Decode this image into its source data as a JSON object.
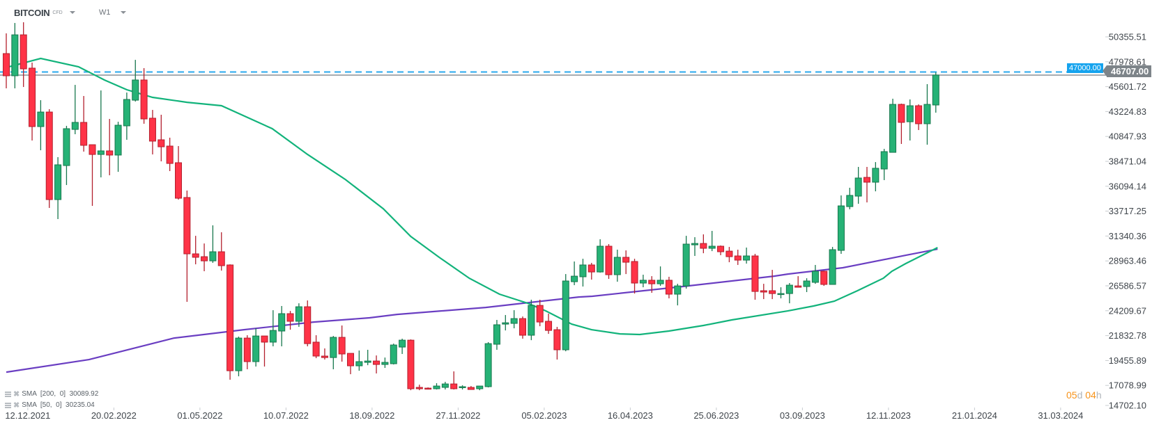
{
  "header": {
    "symbol": "BITCOIN",
    "symbol_type": "CFD",
    "timeframe": "W1"
  },
  "price_axis": {
    "ticks": [
      "50355.51",
      "47978.61",
      "45601.72",
      "43224.83",
      "40847.93",
      "38471.04",
      "36094.14",
      "33717.25",
      "31340.36",
      "28963.46",
      "26586.57",
      "24209.67",
      "21832.78",
      "19455.89",
      "17078.99",
      "14702.10"
    ]
  },
  "date_axis": {
    "labels": [
      "12.12.2021",
      "20.02.2022",
      "01.05.2022",
      "10.07.2022",
      "18.09.2022",
      "27.11.2022",
      "05.02.2023",
      "16.04.2023",
      "25.06.2023",
      "03.09.2023",
      "12.11.2023",
      "21.01.2024",
      "31.03.2024"
    ]
  },
  "price_tags": {
    "horizontal_line": "47000.00",
    "last_price": "46707.00"
  },
  "legend": [
    {
      "label": "SMA  [200,  0]  30089.92"
    },
    {
      "label": "SMA  [50,  0]  30235.04"
    }
  ],
  "countdown": {
    "days": "05",
    "d": "d",
    "hours": "04",
    "h": "h"
  },
  "colors": {
    "up": "#26b276",
    "up_border": "#17774d",
    "down": "#ff3347",
    "down_border": "#b31f2d",
    "sma50": "#12b37b",
    "sma200": "#6a3ec2",
    "hline": "#29a9ee",
    "last": "#7d8489"
  },
  "chart_data": {
    "type": "candlestick",
    "timeframe": "weekly",
    "ylim": [
      14702.1,
      50355.51
    ],
    "horizontal_line": 47000,
    "last_price": 46707,
    "candles_ohlc": [
      [
        48760,
        50690,
        45440,
        46640
      ],
      [
        46640,
        51680,
        45440,
        50550
      ],
      [
        50550,
        51750,
        45570,
        47300
      ],
      [
        47370,
        47900,
        40460,
        41790
      ],
      [
        41790,
        44310,
        39530,
        43180
      ],
      [
        43180,
        43450,
        34020,
        34820
      ],
      [
        34820,
        38870,
        32960,
        38140
      ],
      [
        38070,
        41860,
        36210,
        41590
      ],
      [
        41520,
        45770,
        41060,
        42190
      ],
      [
        42190,
        44710,
        39400,
        40000
      ],
      [
        40060,
        40060,
        34220,
        39130
      ],
      [
        39130,
        45240,
        36940,
        39470
      ],
      [
        39470,
        42520,
        37140,
        39070
      ],
      [
        39070,
        42250,
        37470,
        41920
      ],
      [
        41860,
        45040,
        40530,
        44380
      ],
      [
        44310,
        48160,
        44180,
        46240
      ],
      [
        46240,
        47370,
        42060,
        42520
      ],
      [
        42590,
        43380,
        39130,
        40400
      ],
      [
        40530,
        42920,
        38470,
        39860
      ],
      [
        39930,
        40730,
        37540,
        38270
      ],
      [
        38340,
        39930,
        34820,
        34950
      ],
      [
        35020,
        35680,
        25060,
        29640
      ],
      [
        29640,
        31360,
        28640,
        29310
      ],
      [
        29370,
        30630,
        27980,
        28970
      ],
      [
        28970,
        32360,
        28780,
        29840
      ],
      [
        29840,
        31700,
        28040,
        28510
      ],
      [
        28580,
        28640,
        17620,
        18480
      ],
      [
        18480,
        21740,
        17950,
        21600
      ],
      [
        21600,
        21870,
        18620,
        19350
      ],
      [
        19350,
        22530,
        18880,
        21800
      ],
      [
        21800,
        21800,
        18880,
        21210
      ],
      [
        21210,
        24260,
        20810,
        22330
      ],
      [
        22270,
        24660,
        20810,
        23930
      ],
      [
        23930,
        24190,
        22400,
        23200
      ],
      [
        23200,
        24920,
        22670,
        24590
      ],
      [
        24590,
        25190,
        20810,
        21070
      ],
      [
        21210,
        21870,
        19680,
        19880
      ],
      [
        19880,
        20610,
        19550,
        19740
      ],
      [
        19740,
        21800,
        18620,
        21670
      ],
      [
        21670,
        22800,
        19350,
        20080
      ],
      [
        20140,
        20140,
        18150,
        18950
      ],
      [
        18950,
        20410,
        18480,
        19350
      ],
      [
        19280,
        20480,
        19010,
        19410
      ],
      [
        19410,
        19940,
        18220,
        19080
      ],
      [
        19080,
        19740,
        18750,
        19280
      ],
      [
        19150,
        21070,
        19080,
        20940
      ],
      [
        20740,
        21540,
        20080,
        21400
      ],
      [
        21400,
        21470,
        16620,
        16760
      ],
      [
        16890,
        17150,
        16620,
        16760
      ],
      [
        16820,
        16890,
        16690,
        16760
      ],
      [
        16760,
        17290,
        16690,
        17020
      ],
      [
        16890,
        17420,
        16690,
        17220
      ],
      [
        17220,
        18420,
        16690,
        16760
      ],
      [
        16890,
        17090,
        16690,
        16960
      ],
      [
        16890,
        17020,
        16690,
        16690
      ],
      [
        16760,
        16820,
        16620,
        17020
      ],
      [
        16960,
        21210,
        16890,
        21070
      ],
      [
        21010,
        23330,
        20480,
        22870
      ],
      [
        22930,
        23800,
        22330,
        23060
      ],
      [
        23000,
        24260,
        22530,
        23460
      ],
      [
        23460,
        23660,
        21540,
        21870
      ],
      [
        21870,
        25260,
        21400,
        24720
      ],
      [
        24720,
        25260,
        22730,
        23130
      ],
      [
        23200,
        23930,
        22000,
        22330
      ],
      [
        22400,
        22670,
        19550,
        20480
      ],
      [
        20480,
        27710,
        20340,
        27050
      ],
      [
        26980,
        28910,
        26650,
        27510
      ],
      [
        27450,
        29170,
        26520,
        28580
      ],
      [
        28580,
        28780,
        27180,
        27910
      ],
      [
        27910,
        31030,
        27850,
        30370
      ],
      [
        30370,
        30570,
        27250,
        27650
      ],
      [
        27650,
        30040,
        26980,
        29310
      ],
      [
        29310,
        29970,
        27710,
        28840
      ],
      [
        28910,
        29170,
        25850,
        26850
      ],
      [
        26850,
        27650,
        26450,
        27120
      ],
      [
        27120,
        27510,
        25920,
        26780
      ],
      [
        26780,
        28440,
        26580,
        27120
      ],
      [
        27120,
        27450,
        25390,
        25790
      ],
      [
        25790,
        26780,
        24720,
        26580
      ],
      [
        26580,
        31360,
        26320,
        30570
      ],
      [
        30500,
        31230,
        29440,
        30630
      ],
      [
        30630,
        31500,
        29700,
        30170
      ],
      [
        30170,
        31830,
        29900,
        30370
      ],
      [
        30370,
        30440,
        29510,
        29840
      ],
      [
        29900,
        30300,
        28840,
        29370
      ],
      [
        29440,
        30040,
        28580,
        29040
      ],
      [
        29040,
        30240,
        28710,
        29440
      ],
      [
        29440,
        29640,
        25260,
        26050
      ],
      [
        26120,
        26780,
        25320,
        25990
      ],
      [
        26120,
        28110,
        25320,
        25850
      ],
      [
        25790,
        26450,
        25390,
        25850
      ],
      [
        25850,
        26850,
        24920,
        26650
      ],
      [
        26580,
        27510,
        26450,
        26450
      ],
      [
        26520,
        27310,
        25990,
        27050
      ],
      [
        26920,
        28580,
        26780,
        27980
      ],
      [
        27980,
        28040,
        26580,
        26720
      ],
      [
        26720,
        30300,
        26720,
        30040
      ],
      [
        29970,
        35220,
        29640,
        34220
      ],
      [
        34150,
        35950,
        33890,
        35220
      ],
      [
        35150,
        37940,
        34420,
        36880
      ],
      [
        36940,
        37940,
        34550,
        36480
      ],
      [
        36480,
        38400,
        35610,
        37810
      ],
      [
        37740,
        39660,
        36680,
        39400
      ],
      [
        39330,
        44450,
        39330,
        43910
      ],
      [
        43910,
        43980,
        40130,
        42190
      ],
      [
        42250,
        44380,
        40460,
        43780
      ],
      [
        43780,
        43910,
        41460,
        42060
      ],
      [
        42060,
        45840,
        40060,
        43910
      ],
      [
        43850,
        46970,
        43120,
        46707
      ]
    ],
    "sma50": [
      [
        1,
        47430
      ],
      [
        5,
        48300
      ],
      [
        9.4,
        47500
      ],
      [
        12.4,
        46240
      ],
      [
        15,
        45310
      ],
      [
        18,
        44580
      ],
      [
        22,
        44110
      ],
      [
        26,
        43780
      ],
      [
        31.9,
        41590
      ],
      [
        36,
        39130
      ],
      [
        40.4,
        36740
      ],
      [
        44.8,
        33950
      ],
      [
        48,
        31300
      ],
      [
        51.3,
        29310
      ],
      [
        54.8,
        27310
      ],
      [
        58.3,
        25790
      ],
      [
        61.6,
        24920
      ],
      [
        63.7,
        24190
      ],
      [
        66.7,
        22930
      ],
      [
        69,
        22400
      ],
      [
        72.3,
        22000
      ],
      [
        74.6,
        21940
      ],
      [
        78,
        22270
      ],
      [
        82,
        22800
      ],
      [
        85.3,
        23330
      ],
      [
        91.8,
        24190
      ],
      [
        94.8,
        24660
      ],
      [
        97.2,
        25120
      ],
      [
        99.9,
        26120
      ],
      [
        102.9,
        27310
      ],
      [
        103.9,
        27980
      ],
      [
        105.5,
        28710
      ],
      [
        109.2,
        30235
      ]
    ],
    "sma200": [
      [
        1,
        18350
      ],
      [
        10.6,
        19545
      ],
      [
        20.5,
        21600
      ],
      [
        28.6,
        22400
      ],
      [
        36.7,
        23130
      ],
      [
        43.2,
        23530
      ],
      [
        46.4,
        23860
      ],
      [
        56.7,
        24525
      ],
      [
        67.5,
        25520
      ],
      [
        69.1,
        25590
      ],
      [
        79.6,
        26520
      ],
      [
        90.2,
        27510
      ],
      [
        91.8,
        27710
      ],
      [
        98.2,
        28310
      ],
      [
        105.5,
        29500
      ],
      [
        109.2,
        30090
      ]
    ]
  }
}
